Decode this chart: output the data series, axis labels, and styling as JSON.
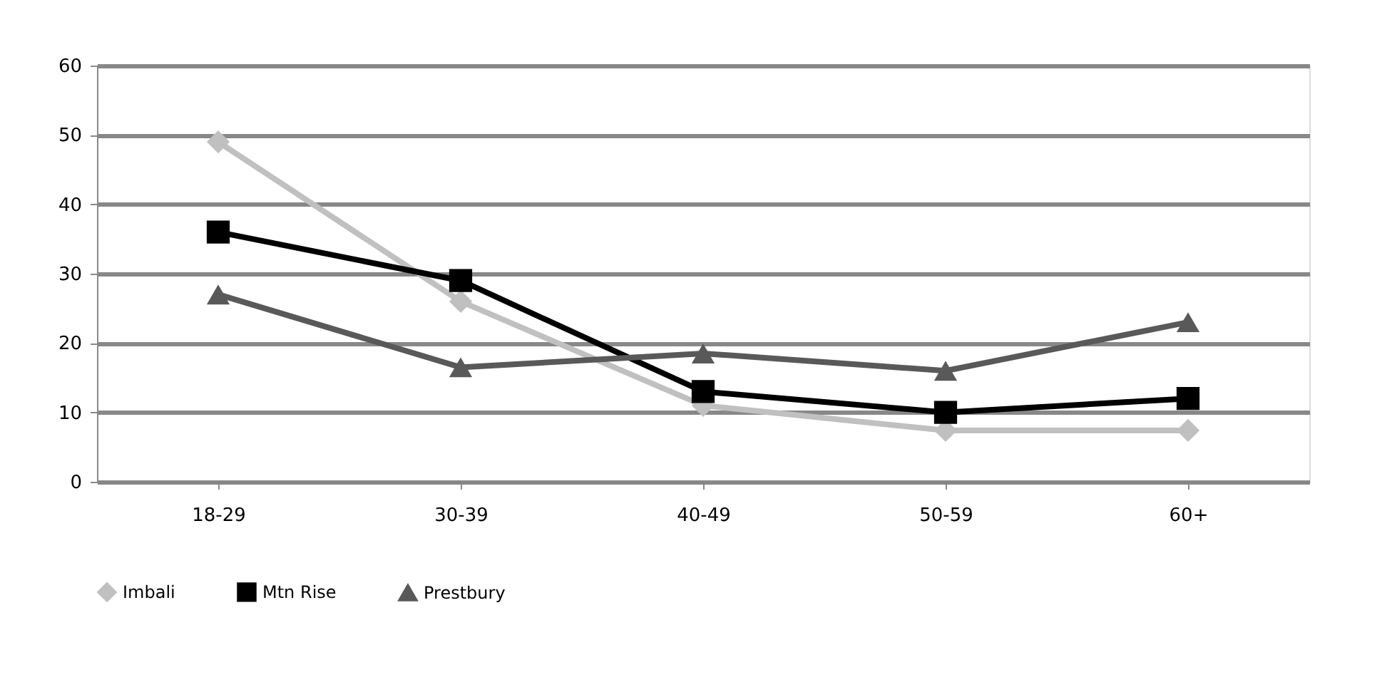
{
  "chart_data": {
    "type": "line",
    "categories": [
      "18-29",
      "30-39",
      "40-49",
      "50-59",
      "60+"
    ],
    "series": [
      {
        "name": "Imbali",
        "color": "#c0c0c0",
        "marker": "diamond",
        "values": [
          49,
          26,
          11,
          7.4,
          7.4
        ]
      },
      {
        "name": "Mtn Rise",
        "color": "#000000",
        "marker": "square",
        "values": [
          36,
          29,
          13,
          10,
          12
        ]
      },
      {
        "name": "Prestbury",
        "color": "#595959",
        "marker": "triangle",
        "values": [
          27,
          16.5,
          18.5,
          16,
          23
        ]
      }
    ],
    "ylim": [
      0,
      60
    ],
    "yticks": [
      0,
      10,
      20,
      30,
      40,
      50,
      60
    ],
    "grid": "y",
    "legend": "bottom",
    "line_style": "solid"
  }
}
